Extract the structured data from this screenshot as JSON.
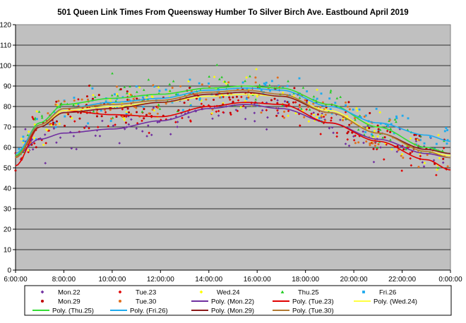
{
  "chart_data": {
    "type": "scatter",
    "title": "501 Queen Link Times From Queensway Humber  To Silver Birch Ave. Eastbound April 2019",
    "xlabel": "",
    "ylabel": "",
    "x_ticks": [
      "6:00:00",
      "8:00:00",
      "10:00:00",
      "12:00:00",
      "14:00:00",
      "16:00:00",
      "18:00:00",
      "20:00:00",
      "22:00:00",
      "0:00:00"
    ],
    "x_range_hours": [
      6,
      24
    ],
    "ylim": [
      0,
      120
    ],
    "y_ticks": [
      0,
      10,
      20,
      30,
      40,
      50,
      60,
      70,
      80,
      90,
      100,
      110,
      120
    ],
    "grid": "horizontal",
    "legend_position": "bottom",
    "series": [
      {
        "name": "Mon.22",
        "kind": "points",
        "marker": "diamond",
        "color": "#7030a0",
        "seed": 11,
        "poly_index": 0
      },
      {
        "name": "Tue.23",
        "kind": "points",
        "marker": "diamond",
        "color": "#e00000",
        "seed": 23,
        "poly_index": 1
      },
      {
        "name": "Wed.24",
        "kind": "points",
        "marker": "diamond",
        "color": "#ffff00",
        "seed": 37,
        "poly_index": 2
      },
      {
        "name": "Thu.25",
        "kind": "points",
        "marker": "triangle",
        "color": "#22cc22",
        "seed": 41,
        "poly_index": 3
      },
      {
        "name": "Fri.26",
        "kind": "points",
        "marker": "square",
        "color": "#1eaaee",
        "seed": 53,
        "poly_index": 4
      },
      {
        "name": "Mon.29",
        "kind": "points",
        "marker": "circle",
        "color": "#c00000",
        "seed": 67,
        "poly_index": 5
      },
      {
        "name": "Tue.30",
        "kind": "points",
        "marker": "circle",
        "color": "#e07020",
        "seed": 79,
        "poly_index": 6
      },
      {
        "name": "Poly. (Mon.22)",
        "kind": "line",
        "color": "#7030a0",
        "x": [
          6,
          7,
          8,
          10,
          12,
          14,
          15.5,
          17,
          19,
          21,
          23,
          24
        ],
        "y": [
          56,
          64,
          67,
          69,
          73,
          79,
          81,
          79,
          72,
          64,
          57,
          55
        ]
      },
      {
        "name": "Poly. (Tue.23)",
        "kind": "line",
        "color": "#e00000",
        "x": [
          6,
          7,
          8,
          10,
          12,
          14,
          15.5,
          17,
          19,
          21,
          23,
          24
        ],
        "y": [
          51,
          70,
          78,
          76,
          75,
          80,
          82,
          81,
          72,
          63,
          54,
          49
        ]
      },
      {
        "name": "Poly. (Wed.24)",
        "kind": "line",
        "color": "#ffff40",
        "x": [
          6,
          7,
          8,
          10,
          12,
          14,
          15.5,
          17,
          19,
          21,
          23,
          24
        ],
        "y": [
          55,
          70,
          78,
          80,
          82,
          85,
          86,
          85,
          78,
          67,
          58,
          56
        ]
      },
      {
        "name": "Poly. (Thu.25)",
        "kind": "line",
        "color": "#33dd33",
        "x": [
          6,
          7,
          8,
          10,
          12,
          14,
          15.5,
          17,
          19,
          21,
          23,
          24
        ],
        "y": [
          56,
          72,
          81,
          84,
          86,
          89,
          90,
          89,
          81,
          70,
          60,
          57
        ]
      },
      {
        "name": "Poly. (Fri.26)",
        "kind": "line",
        "color": "#1eaaee",
        "x": [
          6,
          7,
          8,
          10,
          12,
          14,
          15.5,
          17,
          19,
          21,
          23,
          24
        ],
        "y": [
          57,
          71,
          79,
          82,
          84,
          88,
          89,
          88,
          80,
          72,
          66,
          63
        ]
      },
      {
        "name": "Poly. (Mon.29)",
        "kind": "line",
        "color": "#8b1a1a",
        "x": [
          6,
          7,
          8,
          10,
          12,
          14,
          15.5,
          17,
          19,
          21,
          23,
          24
        ],
        "y": [
          55,
          70,
          77,
          79,
          82,
          86,
          87,
          85,
          77,
          67,
          59,
          57
        ]
      },
      {
        "name": "Poly. (Tue.30)",
        "kind": "line",
        "color": "#b07830",
        "x": [
          6,
          7,
          8,
          10,
          12,
          14,
          15.5,
          17,
          19,
          21,
          23,
          24
        ],
        "y": [
          55,
          71,
          79,
          81,
          83,
          87,
          88,
          86,
          77,
          67,
          58,
          55
        ]
      }
    ]
  }
}
